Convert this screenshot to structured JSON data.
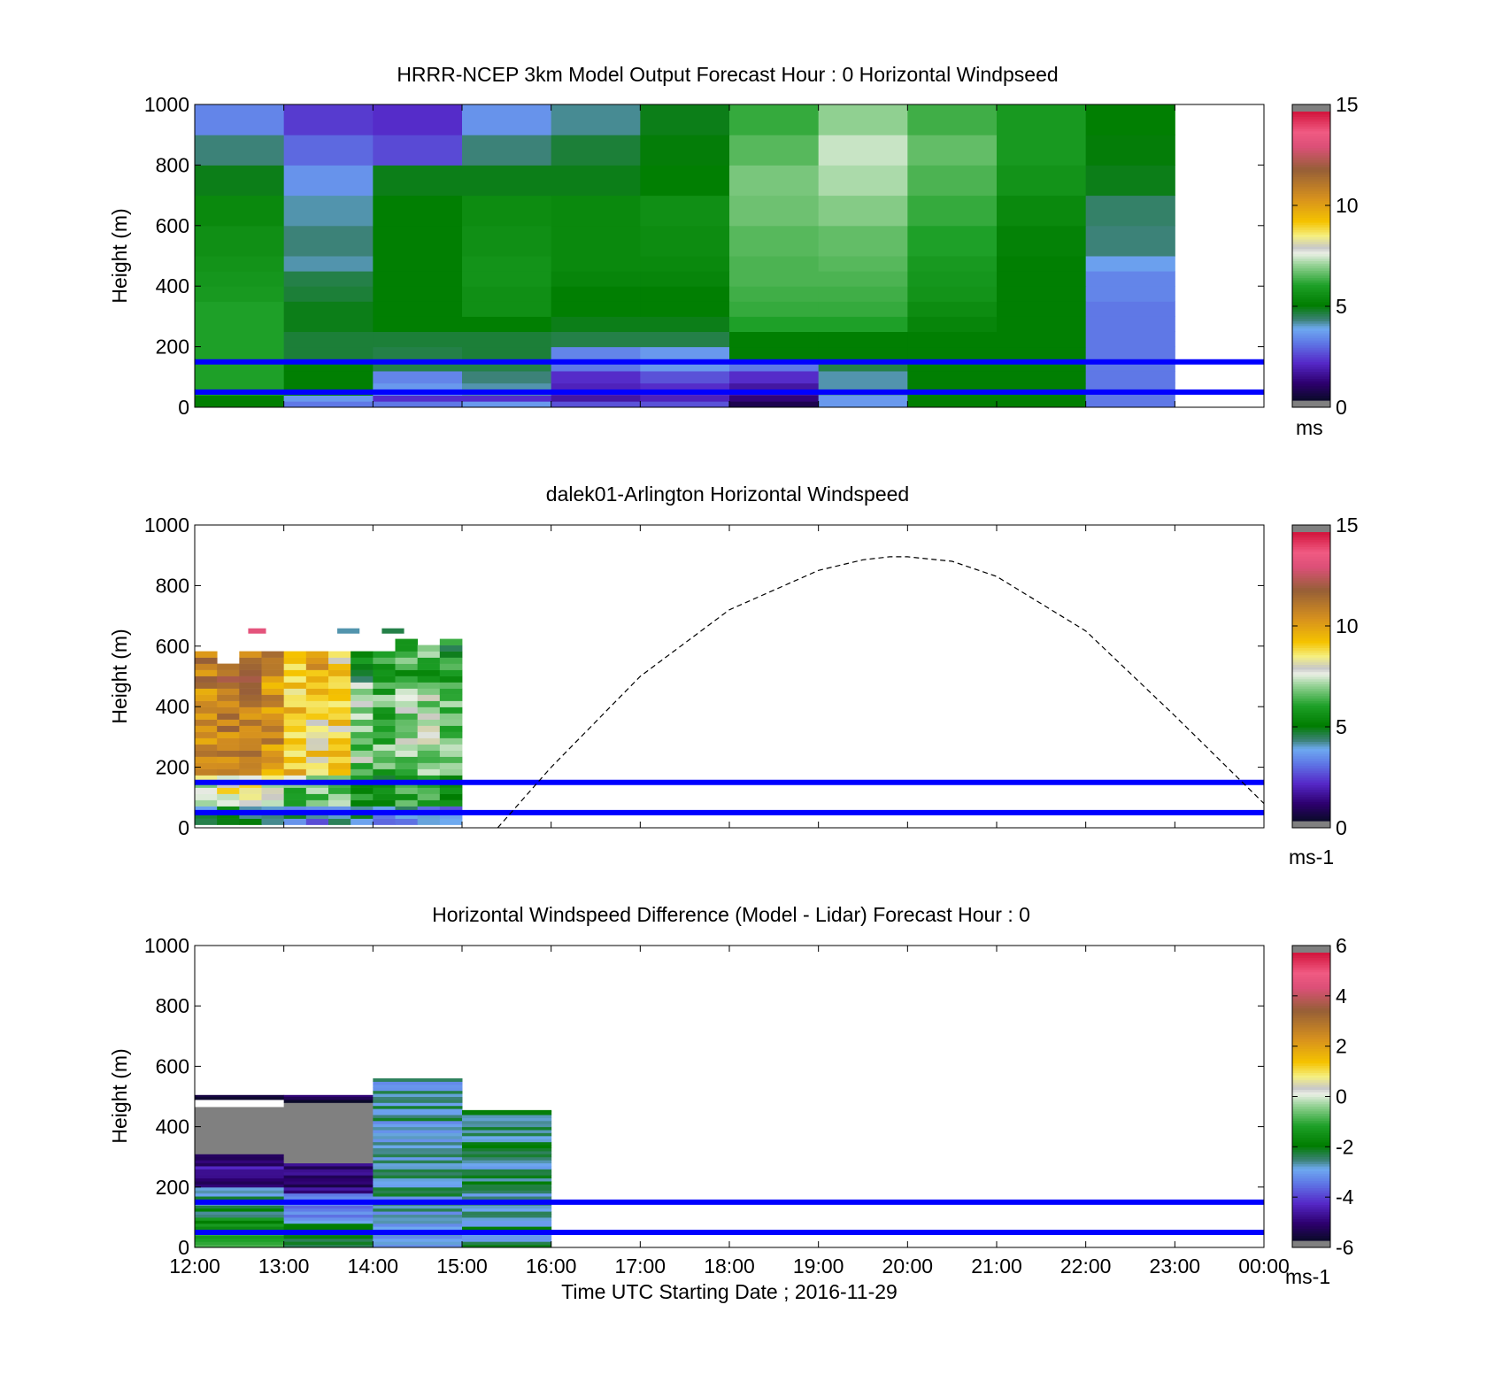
{
  "figure": {
    "xlabel": "Time UTC  Starting Date ; 2016-11-29",
    "x_tick_labels": [
      "12:00",
      "13:00",
      "14:00",
      "15:00",
      "16:00",
      "17:00",
      "18:00",
      "19:00",
      "20:00",
      "21:00",
      "22:00",
      "23:00",
      "00:00"
    ],
    "reference_line_heights_m": [
      150,
      50
    ],
    "reference_line_color": "#0000ff"
  },
  "chart_data": [
    {
      "type": "heatmap",
      "title": "HRRR-NCEP 3km Model Output   Forecast Hour : 0 Horizontal Windpseed",
      "ylabel": "Height (m)",
      "ylim": [
        0,
        1000
      ],
      "y_ticks": [
        0,
        200,
        400,
        600,
        800,
        1000
      ],
      "colorbar": {
        "ticks": [
          0,
          5,
          10,
          15
        ],
        "unit": "ms",
        "range": [
          0,
          15
        ]
      },
      "x_hours": [
        0,
        1,
        2,
        3,
        4,
        5,
        6,
        7,
        8,
        9,
        10,
        11
      ],
      "height_edges_m": [
        0,
        20,
        40,
        80,
        120,
        150,
        200,
        250,
        300,
        350,
        400,
        450,
        500,
        600,
        700,
        800,
        900,
        1000
      ],
      "speed_ms": [
        [
          5.0,
          3.0,
          3.0,
          3.5,
          2.5,
          2.5,
          0.5,
          3.5,
          5.0,
          5.0,
          3.0
        ],
        [
          5.0,
          3.5,
          2.0,
          2.0,
          1.5,
          1.8,
          1.0,
          3.5,
          5.0,
          5.0,
          3.0
        ],
        [
          6.0,
          5.0,
          3.5,
          4.0,
          1.8,
          2.0,
          1.5,
          4.0,
          5.0,
          5.0,
          3.0
        ],
        [
          6.0,
          5.0,
          3.2,
          4.2,
          2.0,
          2.5,
          2.0,
          4.0,
          5.0,
          5.0,
          3.0
        ],
        [
          6.0,
          5.0,
          4.5,
          4.5,
          3.0,
          3.5,
          3.0,
          4.5,
          5.0,
          5.0,
          3.0
        ],
        [
          6.0,
          4.6,
          4.5,
          4.6,
          3.2,
          3.5,
          5.0,
          5.0,
          5.0,
          5.0,
          3.0
        ],
        [
          6.0,
          4.6,
          4.6,
          4.6,
          4.5,
          4.5,
          5.0,
          5.0,
          5.0,
          5.0,
          3.0
        ],
        [
          6.0,
          4.8,
          5.0,
          5.0,
          4.8,
          4.8,
          6.0,
          6.0,
          5.2,
          5.0,
          3.0
        ],
        [
          6.0,
          4.8,
          5.0,
          5.5,
          5.0,
          5.0,
          6.2,
          6.2,
          5.4,
          5.0,
          3.0
        ],
        [
          5.8,
          4.6,
          5.0,
          5.5,
          5.0,
          5.0,
          6.3,
          6.3,
          5.6,
          5.0,
          3.2
        ],
        [
          5.7,
          4.5,
          5.0,
          5.6,
          5.2,
          5.2,
          6.4,
          6.4,
          5.7,
          5.0,
          3.2
        ],
        [
          5.6,
          4.0,
          5.0,
          5.6,
          5.3,
          5.3,
          6.4,
          6.5,
          5.8,
          5.0,
          3.6
        ],
        [
          5.5,
          4.2,
          5.0,
          5.5,
          5.3,
          5.4,
          6.5,
          6.6,
          6.0,
          5.1,
          4.2
        ],
        [
          5.3,
          4.0,
          5.0,
          5.4,
          5.3,
          5.5,
          6.7,
          6.9,
          6.2,
          5.3,
          4.3
        ],
        [
          4.8,
          3.4,
          4.8,
          4.8,
          4.8,
          5.0,
          6.8,
          7.2,
          6.4,
          5.6,
          4.8
        ],
        [
          4.2,
          2.8,
          2.4,
          4.2,
          4.6,
          4.9,
          6.5,
          7.4,
          6.6,
          5.8,
          4.9
        ],
        [
          3.2,
          2.2,
          2.0,
          3.4,
          4.1,
          4.8,
          6.2,
          7.0,
          6.3,
          5.8,
          5.0
        ]
      ]
    },
    {
      "type": "heatmap",
      "title": "dalek01-Arlington  Horizontal Windspeed",
      "ylabel": "Height (m)",
      "ylim": [
        0,
        1000
      ],
      "y_ticks": [
        0,
        200,
        400,
        600,
        800,
        1000
      ],
      "colorbar": {
        "ticks": [
          0,
          5,
          10,
          15
        ],
        "unit": "ms-1",
        "range": [
          0,
          15
        ]
      },
      "lidar_columns": [
        {
          "start_h": 0.0,
          "top_m": 580,
          "low_ms": 6.0,
          "mid_ms": 10.8,
          "high_ms": 11.0
        },
        {
          "start_h": 0.25,
          "top_m": 530,
          "low_ms": 6.5,
          "mid_ms": 11.0,
          "high_ms": 12.0
        },
        {
          "start_h": 0.5,
          "top_m": 580,
          "low_ms": 6.5,
          "mid_ms": 11.0,
          "high_ms": 11.5
        },
        {
          "start_h": 0.75,
          "top_m": 580,
          "low_ms": 6.0,
          "mid_ms": 10.5,
          "high_ms": 10.8
        },
        {
          "start_h": 1.0,
          "top_m": 580,
          "low_ms": 5.5,
          "mid_ms": 9.5,
          "high_ms": 9.5
        },
        {
          "start_h": 1.25,
          "top_m": 580,
          "low_ms": 5.0,
          "mid_ms": 9.0,
          "high_ms": 10.0
        },
        {
          "start_h": 1.5,
          "top_m": 580,
          "low_ms": 5.0,
          "mid_ms": 8.8,
          "high_ms": 9.0
        },
        {
          "start_h": 1.75,
          "top_m": 580,
          "low_ms": 5.2,
          "mid_ms": 7.0,
          "high_ms": 5.0
        },
        {
          "start_h": 2.0,
          "top_m": 580,
          "low_ms": 5.2,
          "mid_ms": 6.5,
          "high_ms": 6.0
        },
        {
          "start_h": 2.25,
          "top_m": 610,
          "low_ms": 5.0,
          "mid_ms": 7.0,
          "high_ms": 6.0
        },
        {
          "start_h": 2.5,
          "top_m": 590,
          "low_ms": 5.2,
          "mid_ms": 7.2,
          "high_ms": 6.2
        },
        {
          "start_h": 2.75,
          "top_m": 610,
          "low_ms": 5.0,
          "mid_ms": 7.0,
          "high_ms": 5.5
        }
      ],
      "isolated_returns": [
        {
          "start_h": 0.6,
          "end_h": 0.8,
          "height_m": 650,
          "speed_ms": 13.5
        },
        {
          "start_h": 1.6,
          "end_h": 1.85,
          "height_m": 650,
          "speed_ms": 4.0
        },
        {
          "start_h": 2.1,
          "end_h": 2.35,
          "height_m": 650,
          "speed_ms": 4.5
        }
      ],
      "overlay_dashed_curve": {
        "x_hours": [
          3.4,
          4.0,
          5.0,
          6.0,
          7.0,
          7.5,
          7.8,
          8.0,
          8.5,
          9.0,
          10.0,
          11.0,
          12.0
        ],
        "height_m": [
          0,
          200,
          500,
          720,
          850,
          885,
          895,
          895,
          880,
          830,
          650,
          370,
          80
        ]
      }
    },
    {
      "type": "heatmap",
      "title": "Horizontal Windspeed Difference (Model - Lidar) Forecast Hour : 0",
      "ylabel": "Height (m)",
      "ylim": [
        0,
        1000
      ],
      "y_ticks": [
        0,
        200,
        400,
        600,
        800,
        1000
      ],
      "colorbar": {
        "ticks": [
          -6,
          -4,
          -2,
          0,
          2,
          4,
          6
        ],
        "unit": "ms-1",
        "range": [
          -6,
          6
        ]
      },
      "difference_columns": [
        {
          "start_h": 0,
          "end_h": 1,
          "bands": [
            {
              "from_m": 0,
              "to_m": 100,
              "diff": -1.5
            },
            {
              "from_m": 100,
              "to_m": 200,
              "diff": -2.5
            },
            {
              "from_m": 200,
              "to_m": 310,
              "diff": -5.0
            },
            {
              "from_m": 310,
              "to_m": 465,
              "diff": null
            },
            {
              "from_m": 490,
              "to_m": 505,
              "diff": -5.5
            }
          ]
        },
        {
          "start_h": 1,
          "end_h": 2,
          "bands": [
            {
              "from_m": 0,
              "to_m": 80,
              "diff": -2.0
            },
            {
              "from_m": 80,
              "to_m": 180,
              "diff": -3.5
            },
            {
              "from_m": 180,
              "to_m": 280,
              "diff": -5.2
            },
            {
              "from_m": 280,
              "to_m": 480,
              "diff": null
            },
            {
              "from_m": 480,
              "to_m": 505,
              "diff": -5.5
            }
          ]
        },
        {
          "start_h": 2,
          "end_h": 3,
          "bands": [
            {
              "from_m": 0,
              "to_m": 560,
              "diff": -2.8
            }
          ]
        },
        {
          "start_h": 3,
          "end_h": 4,
          "bands": [
            {
              "from_m": 0,
              "to_m": 455,
              "diff": -2.6
            }
          ]
        }
      ]
    }
  ]
}
